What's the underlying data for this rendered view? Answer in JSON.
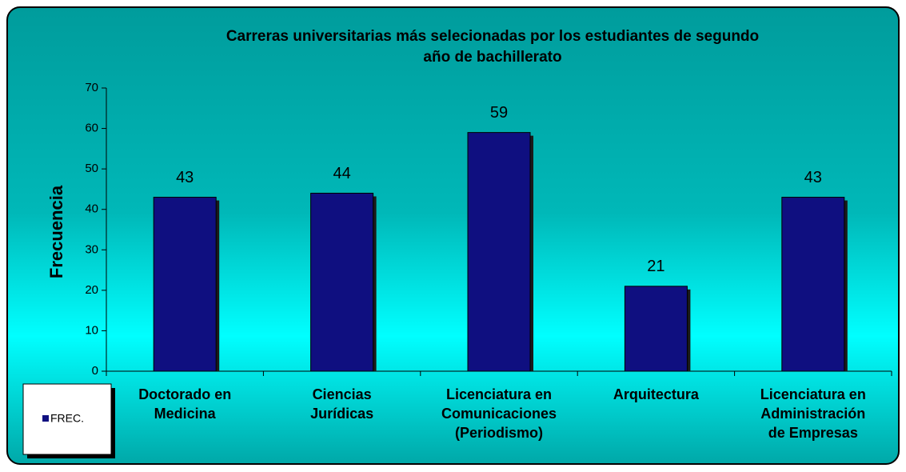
{
  "chart_data": {
    "type": "bar",
    "title": "Carreras universitarias más selecionadas por los estudiantes de segundo año de bachillerato",
    "y_label": "Frecuencia",
    "categories": [
      "Doctorado en Medicina",
      "Ciencias Jurídicas",
      "Licenciatura en Comunicaciones (Periodismo)",
      "Arquitectura",
      "Licenciatura en Administración de Empresas"
    ],
    "series": [
      {
        "name": "FREC.",
        "color": "#0f0f80",
        "values": [
          43,
          44,
          59,
          21,
          43
        ]
      }
    ],
    "ylim": [
      0,
      70
    ],
    "yticks": [
      0,
      10,
      20,
      30,
      40,
      50,
      60,
      70
    ],
    "legend": "bottom-left"
  }
}
